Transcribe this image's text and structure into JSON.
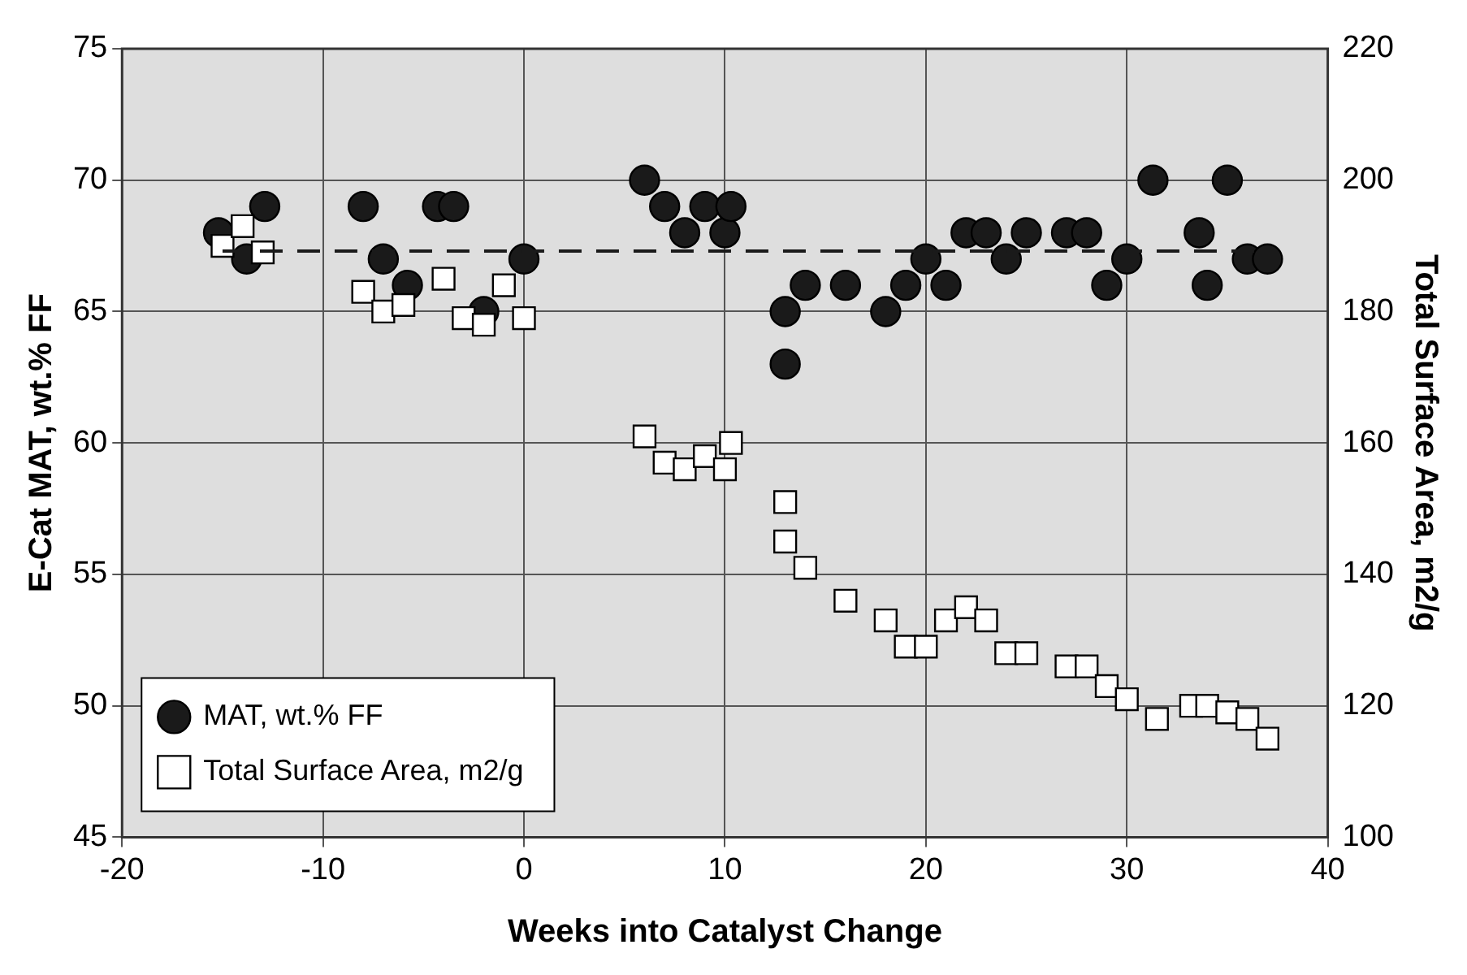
{
  "chart_data": {
    "type": "scatter",
    "xlabel": "Weeks into Catalyst Change",
    "ylabel": "E-Cat MAT, wt.% FF",
    "y2label": "Total Surface Area, m2/g",
    "xlim": [
      -20,
      40
    ],
    "xticks": [
      -20,
      -10,
      0,
      10,
      20,
      30,
      40
    ],
    "ylim": [
      45,
      75
    ],
    "yticks": [
      45,
      50,
      55,
      60,
      65,
      70,
      75
    ],
    "y2lim": [
      100,
      220
    ],
    "y2ticks": [
      100,
      120,
      140,
      160,
      180,
      200,
      220
    ],
    "grid": true,
    "legend": "bottom left",
    "series": [
      {
        "name": "MAT, wt.% FF",
        "color": "#1a1a1a",
        "marker": "circle",
        "x": [
          -15.2,
          -13.8,
          -12.9,
          -8,
          -7,
          -5.8,
          -4.3,
          -3.5,
          -2,
          0,
          6,
          7,
          8,
          9,
          10,
          10.3,
          13,
          13,
          14,
          16,
          18,
          19,
          20,
          21,
          22,
          23,
          24,
          25,
          27,
          28,
          29,
          30,
          31.3,
          33.6,
          34,
          35,
          36,
          37
        ],
        "values": [
          68,
          67,
          69,
          69,
          67,
          66,
          69,
          69,
          65,
          67,
          70,
          69,
          68,
          69,
          68,
          69,
          65,
          63,
          66,
          66,
          65,
          66,
          67,
          66,
          68,
          68,
          67,
          68,
          68,
          68,
          66,
          67,
          70,
          68,
          66,
          70,
          67,
          67
        ]
      },
      {
        "name": "Total Surface Area, m2/g",
        "color": "#ffffff",
        "marker": "square",
        "axis": "y2",
        "x": [
          -15,
          -14,
          -13,
          -8,
          -7,
          -6,
          -4,
          -3,
          -2,
          -1,
          0,
          6,
          7,
          8,
          9,
          10,
          10.3,
          13,
          13,
          14,
          16,
          18,
          19,
          20,
          21,
          22,
          23,
          24,
          25,
          27,
          28,
          29,
          30,
          31.5,
          33.2,
          34,
          35,
          36,
          37
        ],
        "values": [
          190,
          193,
          189,
          183,
          180,
          181,
          185,
          179,
          178,
          184,
          179,
          161,
          157,
          156,
          158,
          156,
          160,
          151,
          145,
          141,
          136,
          133,
          129,
          129,
          133,
          135,
          133,
          128,
          128,
          126,
          126,
          123,
          121,
          118,
          120,
          120,
          119,
          118,
          115
        ]
      },
      {
        "type": "line",
        "color": "#1a1a1a",
        "marker": "none",
        "line_style": "dashed",
        "x": [
          -15,
          37
        ],
        "values": [
          67.3,
          67.3
        ]
      }
    ]
  }
}
